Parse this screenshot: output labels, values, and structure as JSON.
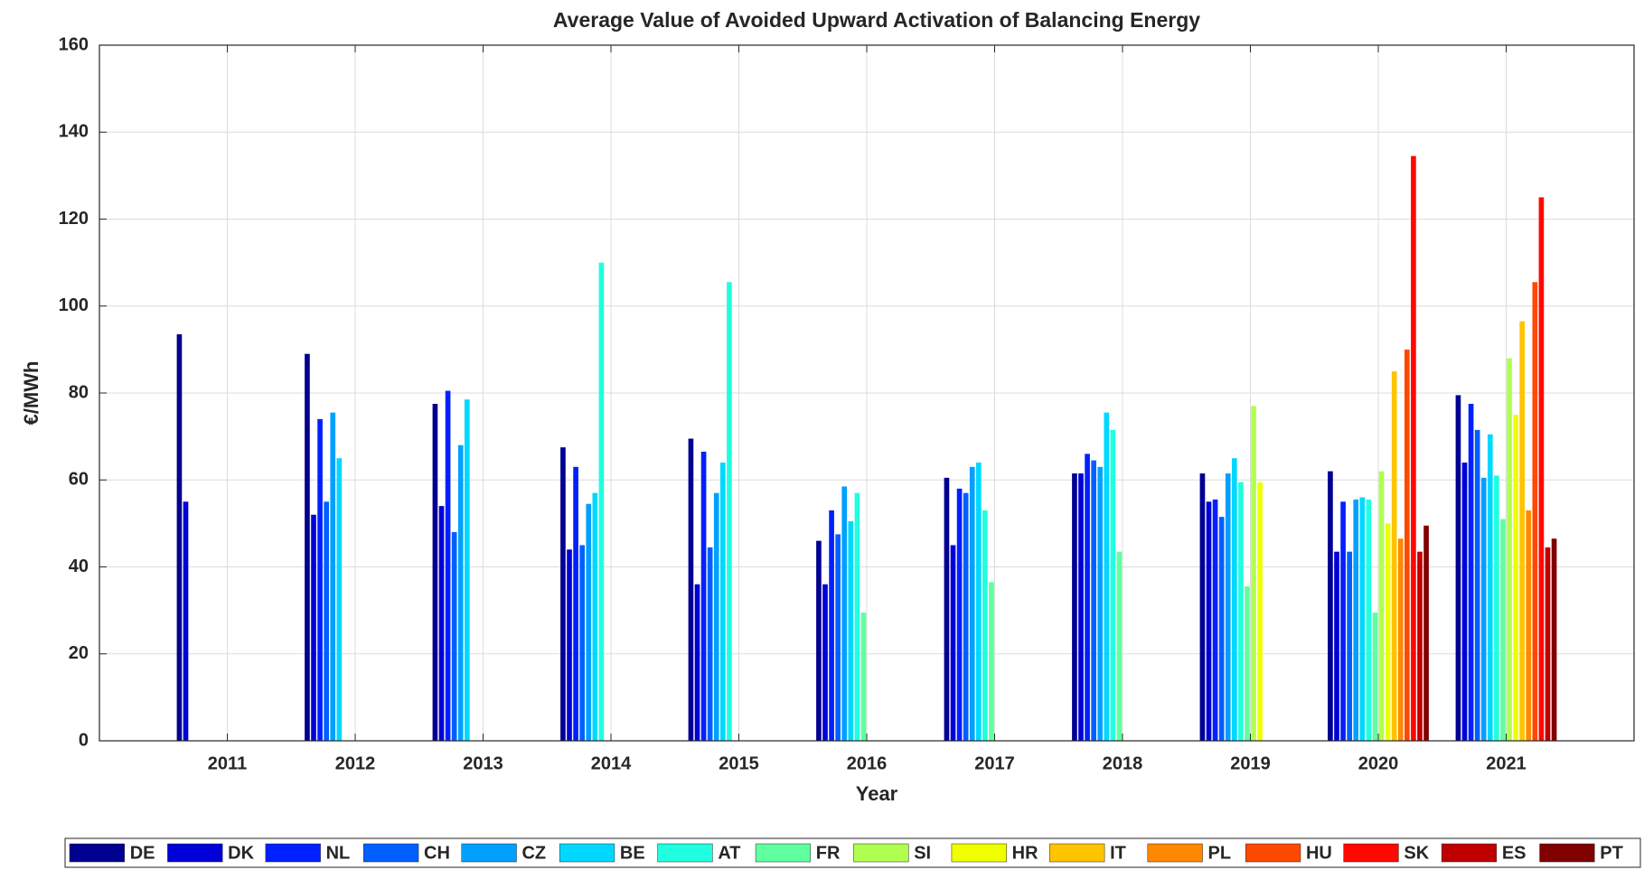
{
  "chart_data": {
    "type": "bar",
    "title": "Average Value of Avoided Upward Activation of Balancing Energy",
    "x_label": "Year",
    "y_label": "€/MWh",
    "categories": [
      "2011",
      "2012",
      "2013",
      "2014",
      "2015",
      "2016",
      "2017",
      "2018",
      "2019",
      "2020",
      "2021"
    ],
    "ylim": [
      0,
      160
    ],
    "yticks": [
      0,
      20,
      40,
      60,
      80,
      100,
      120,
      140,
      160
    ],
    "grid": true,
    "legend": "bottom",
    "series": [
      {
        "name": "DE",
        "color": "#000090",
        "values": [
          93.5,
          89,
          77.5,
          67.5,
          69.5,
          46,
          60.5,
          61.5,
          61.5,
          62,
          79.5
        ]
      },
      {
        "name": "DK",
        "color": "#0000d8",
        "values": [
          55,
          52,
          54,
          44,
          36,
          36,
          45,
          61.5,
          55,
          43.5,
          64
        ]
      },
      {
        "name": "NL",
        "color": "#0020ff",
        "values": [
          null,
          74,
          80.5,
          63,
          66.5,
          53,
          58,
          66,
          55.5,
          55,
          77.5
        ]
      },
      {
        "name": "CH",
        "color": "#0060ff",
        "values": [
          null,
          55,
          48,
          45,
          44.5,
          47.5,
          57,
          64.5,
          51.5,
          43.5,
          71.5
        ]
      },
      {
        "name": "CZ",
        "color": "#00a0ff",
        "values": [
          null,
          75.5,
          68,
          54.5,
          57,
          58.5,
          63,
          63,
          61.5,
          55.5,
          60.5
        ]
      },
      {
        "name": "BE",
        "color": "#00d8ff",
        "values": [
          null,
          65,
          78.5,
          57,
          64,
          50.5,
          64,
          75.5,
          65,
          56,
          70.5
        ]
      },
      {
        "name": "AT",
        "color": "#20ffe0",
        "values": [
          null,
          null,
          null,
          110,
          105.5,
          57,
          53,
          71.5,
          59.5,
          55.5,
          61
        ]
      },
      {
        "name": "FR",
        "color": "#60ffa0",
        "values": [
          null,
          null,
          null,
          null,
          null,
          29.5,
          36.5,
          43.5,
          35.5,
          29.5,
          51
        ]
      },
      {
        "name": "SI",
        "color": "#b0ff50",
        "values": [
          null,
          null,
          null,
          null,
          null,
          null,
          null,
          null,
          77,
          62,
          88
        ]
      },
      {
        "name": "HR",
        "color": "#f0ff00",
        "values": [
          null,
          null,
          null,
          null,
          null,
          null,
          null,
          null,
          59.5,
          50,
          75
        ]
      },
      {
        "name": "IT",
        "color": "#ffc400",
        "values": [
          null,
          null,
          null,
          null,
          null,
          null,
          null,
          null,
          null,
          85,
          96.5
        ]
      },
      {
        "name": "PL",
        "color": "#ff8800",
        "values": [
          null,
          null,
          null,
          null,
          null,
          null,
          null,
          null,
          null,
          46.5,
          53
        ]
      },
      {
        "name": "HU",
        "color": "#ff4800",
        "values": [
          null,
          null,
          null,
          null,
          null,
          null,
          null,
          null,
          null,
          90,
          105.5
        ]
      },
      {
        "name": "SK",
        "color": "#ff0800",
        "values": [
          null,
          null,
          null,
          null,
          null,
          null,
          null,
          null,
          null,
          134.5,
          125
        ]
      },
      {
        "name": "ES",
        "color": "#c00000",
        "values": [
          null,
          null,
          null,
          null,
          null,
          null,
          null,
          null,
          null,
          43.5,
          44.5
        ]
      },
      {
        "name": "PT",
        "color": "#800000",
        "values": [
          null,
          null,
          null,
          null,
          null,
          null,
          null,
          null,
          null,
          49.5,
          46.5
        ]
      }
    ]
  }
}
